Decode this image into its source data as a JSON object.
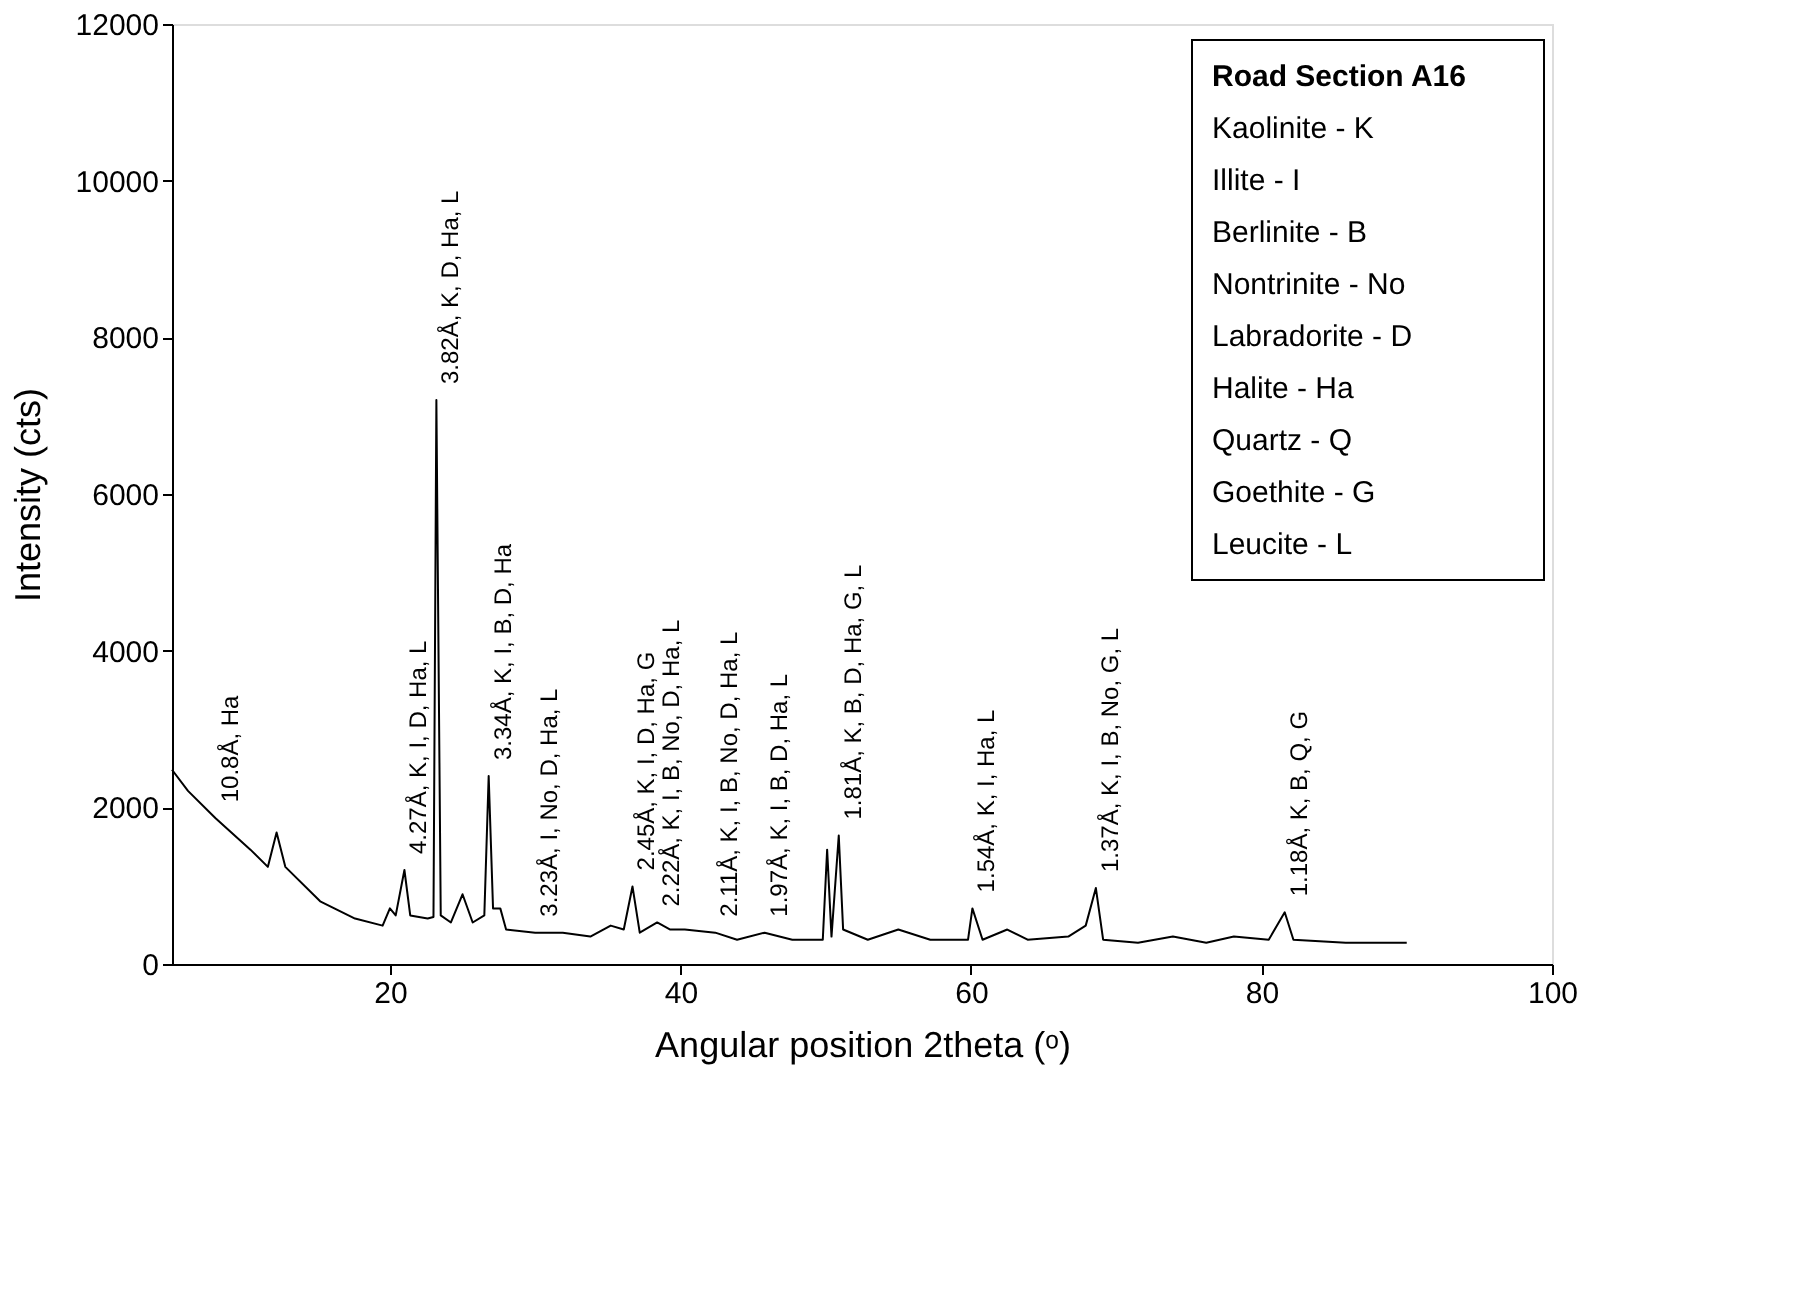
{
  "chart_data": {
    "type": "line",
    "xlabel": "Angular position 2theta (ᵒ)",
    "ylabel": "Intensity (cts)",
    "xlim": [
      5,
      100
    ],
    "ylim": [
      0,
      12000
    ],
    "xticks": [
      20,
      40,
      60,
      80,
      100
    ],
    "yticks": [
      0,
      2000,
      4000,
      6000,
      8000,
      10000,
      12000
    ],
    "grid": false,
    "marker": "none",
    "line_style": "solid",
    "series": [
      {
        "color": "#000000",
        "x": [
          5.0,
          6.1,
          8.0,
          10.4,
          11.6,
          12.2,
          12.8,
          15.2,
          17.6,
          19.5,
          20.0,
          20.4,
          21.0,
          21.4,
          22.6,
          23.0,
          23.2,
          23.5,
          24.2,
          25.0,
          25.7,
          26.5,
          26.8,
          27.1,
          27.6,
          28.0,
          30.0,
          31.9,
          33.8,
          35.2,
          36.1,
          36.7,
          37.2,
          38.4,
          39.3,
          40.3,
          42.4,
          43.9,
          45.8,
          47.7,
          49.8,
          50.1,
          50.4,
          50.9,
          51.2,
          52.9,
          55.0,
          57.2,
          59.8,
          60.1,
          60.8,
          62.5,
          63.9,
          66.7,
          67.9,
          68.6,
          69.1,
          71.5,
          73.9,
          76.2,
          78.1,
          80.5,
          81.6,
          82.2,
          85.8,
          90.0
        ],
        "values": [
          2480,
          2210,
          1860,
          1460,
          1240,
          1680,
          1240,
          800,
          580,
          490,
          710,
          620,
          1200,
          620,
          580,
          600,
          7200,
          620,
          530,
          890,
          530,
          620,
          2400,
          710,
          710,
          440,
          400,
          400,
          350,
          490,
          440,
          990,
          400,
          530,
          440,
          440,
          400,
          310,
          400,
          310,
          310,
          1460,
          350,
          1640,
          440,
          310,
          440,
          310,
          310,
          710,
          310,
          440,
          310,
          350,
          490,
          970,
          310,
          270,
          350,
          270,
          350,
          310,
          660,
          310,
          270,
          270
        ]
      }
    ],
    "annotations": [
      "Road Section A16",
      "Kaolinite - K",
      "Illite - I",
      "Berlinite - B",
      "Nontrinite - No",
      "Labradorite - D",
      "Halite - Ha",
      "Quartz - Q",
      "Goethite - G",
      "Leucite - L",
      {
        "text": "10.8Å, Ha",
        "x": 8.0,
        "y": 1860
      },
      {
        "text": "4.27Å, K, I, D, Ha, L",
        "x": 21.0,
        "y": 1200
      },
      {
        "text": "3.82Å, K, D, Ha, L",
        "x": 23.2,
        "y": 7200
      },
      {
        "text": "3.34Å, K, I, B, D, Ha",
        "x": 26.8,
        "y": 2400
      },
      {
        "text": "3.23Å, I, No, D, Ha, L",
        "x": 30.0,
        "y": 400
      },
      {
        "text": "2.45Å, K, I, D, Ha, G",
        "x": 36.7,
        "y": 990
      },
      {
        "text": "2.22Å, K, I, B, No, D, Ha, L",
        "x": 38.4,
        "y": 530
      },
      {
        "text": "2.11Å, K, I, B, No, D, Ha, L",
        "x": 42.4,
        "y": 400
      },
      {
        "text": "1.97Å, K, I, B, D, Ha, L",
        "x": 45.8,
        "y": 400
      },
      {
        "text": "1.81Å, K, B, D, Ha, G, L",
        "x": 50.9,
        "y": 1640
      },
      {
        "text": "1.54Å, K, I, Ha, L",
        "x": 60.1,
        "y": 710
      },
      {
        "text": "1.37Å, K, I, B, No, G, L",
        "x": 68.6,
        "y": 970
      },
      {
        "text": "1.18Å, K, B, Q, G",
        "x": 81.6,
        "y": 660
      }
    ]
  }
}
